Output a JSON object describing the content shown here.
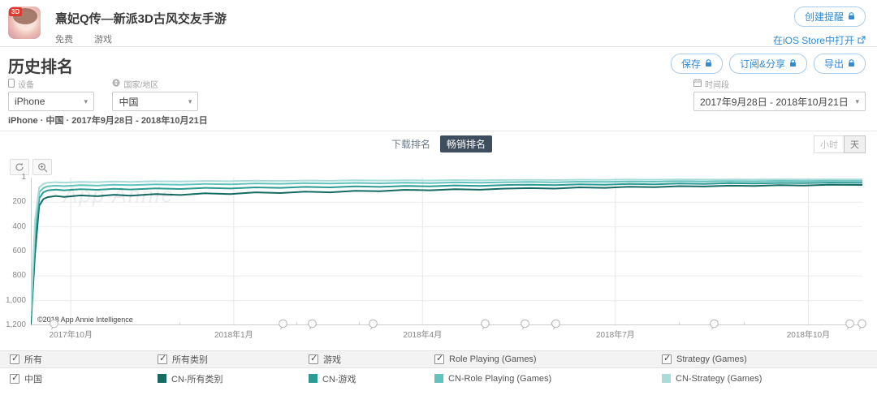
{
  "header": {
    "app_name": "熹妃Q传—新派3D古风交友手游",
    "price_tag": "免费",
    "category_tag": "游戏",
    "icon_badge": "3D",
    "create_alert_label": "创建提醒",
    "open_in_store_label": "在iOS Store中打开"
  },
  "page": {
    "title": "历史排名",
    "save_label": "保存",
    "subscribe_share_label": "订阅&分享",
    "export_label": "导出"
  },
  "filters": {
    "device_label": "设备",
    "device_value": "iPhone",
    "country_label": "国家/地区",
    "country_value": "中国",
    "period_label": "时间段",
    "period_value": "2017年9月28日 - 2018年10月21日",
    "summary": "iPhone · 中国 · 2017年9月28日 - 2018年10月21日"
  },
  "tabs": {
    "download_label": "下载排名",
    "grossing_label": "畅销排名",
    "active": "畅销排名"
  },
  "granularity": {
    "hour_label": "小时",
    "day_label": "天",
    "active": "天"
  },
  "chart_data": {
    "type": "line",
    "title": "历史排名",
    "x_range_label": "2017年9月28日 - 2018年10月21日",
    "y_axis_inverted": true,
    "ylim": [
      1,
      1200
    ],
    "grid": true,
    "copyright": "©2018 App Annie Intelligence",
    "watermark": "App Annie",
    "y_ticks": [
      {
        "v": 1,
        "label": "1"
      },
      {
        "v": 200,
        "label": "200"
      },
      {
        "v": 400,
        "label": "400"
      },
      {
        "v": 600,
        "label": "600"
      },
      {
        "v": 800,
        "label": "800"
      },
      {
        "v": 1000,
        "label": "1,000"
      },
      {
        "v": 1200,
        "label": "1,200"
      }
    ],
    "x_ticks": [
      {
        "pos": 0.048,
        "label": "2017年10月"
      },
      {
        "pos": 0.244,
        "label": "2018年1月"
      },
      {
        "pos": 0.471,
        "label": "2018年4月"
      },
      {
        "pos": 0.703,
        "label": "2018年7月"
      },
      {
        "pos": 0.935,
        "label": "2018年10月"
      }
    ],
    "x_minor_tick_positions": [
      0.113,
      0.179,
      0.32,
      0.395,
      0.548,
      0.626,
      0.78,
      0.858
    ],
    "event_marker_positions": [
      0.027,
      0.303,
      0.338,
      0.411,
      0.546,
      0.594,
      0.631,
      0.821,
      0.984,
      0.999
    ],
    "series": [
      {
        "name": "CN-所有类别",
        "color": "#156a64",
        "points": [
          [
            0,
            1190
          ],
          [
            0.005,
            620
          ],
          [
            0.01,
            230
          ],
          [
            0.015,
            175
          ],
          [
            0.02,
            160
          ],
          [
            0.03,
            150
          ],
          [
            0.04,
            158
          ],
          [
            0.06,
            145
          ],
          [
            0.08,
            152
          ],
          [
            0.1,
            140
          ],
          [
            0.12,
            148
          ],
          [
            0.15,
            135
          ],
          [
            0.18,
            142
          ],
          [
            0.21,
            128
          ],
          [
            0.24,
            135
          ],
          [
            0.27,
            120
          ],
          [
            0.3,
            126
          ],
          [
            0.33,
            115
          ],
          [
            0.36,
            120
          ],
          [
            0.39,
            108
          ],
          [
            0.42,
            112
          ],
          [
            0.45,
            100
          ],
          [
            0.48,
            104
          ],
          [
            0.51,
            95
          ],
          [
            0.54,
            99
          ],
          [
            0.57,
            90
          ],
          [
            0.6,
            86
          ],
          [
            0.63,
            90
          ],
          [
            0.66,
            80
          ],
          [
            0.69,
            84
          ],
          [
            0.72,
            75
          ],
          [
            0.75,
            78
          ],
          [
            0.78,
            70
          ],
          [
            0.81,
            73
          ],
          [
            0.84,
            66
          ],
          [
            0.87,
            69
          ],
          [
            0.9,
            62
          ],
          [
            0.93,
            65
          ],
          [
            0.96,
            58
          ],
          [
            1.0,
            60
          ]
        ]
      },
      {
        "name": "CN-游戏",
        "color": "#2b9a92",
        "points": [
          [
            0,
            1150
          ],
          [
            0.005,
            500
          ],
          [
            0.01,
            170
          ],
          [
            0.015,
            120
          ],
          [
            0.02,
            105
          ],
          [
            0.03,
            98
          ],
          [
            0.04,
            104
          ],
          [
            0.06,
            95
          ],
          [
            0.08,
            100
          ],
          [
            0.1,
            92
          ],
          [
            0.12,
            97
          ],
          [
            0.15,
            88
          ],
          [
            0.18,
            93
          ],
          [
            0.21,
            84
          ],
          [
            0.24,
            89
          ],
          [
            0.27,
            80
          ],
          [
            0.3,
            84
          ],
          [
            0.33,
            76
          ],
          [
            0.36,
            80
          ],
          [
            0.39,
            72
          ],
          [
            0.42,
            76
          ],
          [
            0.45,
            68
          ],
          [
            0.48,
            72
          ],
          [
            0.51,
            64
          ],
          [
            0.54,
            68
          ],
          [
            0.57,
            61
          ],
          [
            0.6,
            58
          ],
          [
            0.63,
            62
          ],
          [
            0.66,
            55
          ],
          [
            0.69,
            58
          ],
          [
            0.72,
            52
          ],
          [
            0.75,
            55
          ],
          [
            0.78,
            49
          ],
          [
            0.81,
            52
          ],
          [
            0.84,
            46
          ],
          [
            0.87,
            49
          ],
          [
            0.9,
            44
          ],
          [
            0.93,
            46
          ],
          [
            0.96,
            41
          ],
          [
            1.0,
            43
          ]
        ]
      },
      {
        "name": "CN-Role Playing (Games)",
        "color": "#62c3bd",
        "points": [
          [
            0,
            1120
          ],
          [
            0.005,
            420
          ],
          [
            0.01,
            120
          ],
          [
            0.015,
            85
          ],
          [
            0.02,
            72
          ],
          [
            0.03,
            66
          ],
          [
            0.04,
            70
          ],
          [
            0.06,
            62
          ],
          [
            0.08,
            66
          ],
          [
            0.1,
            58
          ],
          [
            0.12,
            62
          ],
          [
            0.15,
            55
          ],
          [
            0.18,
            58
          ],
          [
            0.21,
            52
          ],
          [
            0.24,
            55
          ],
          [
            0.27,
            48
          ],
          [
            0.3,
            51
          ],
          [
            0.33,
            46
          ],
          [
            0.36,
            49
          ],
          [
            0.39,
            44
          ],
          [
            0.42,
            47
          ],
          [
            0.45,
            42
          ],
          [
            0.48,
            45
          ],
          [
            0.51,
            40
          ],
          [
            0.54,
            42
          ],
          [
            0.57,
            38
          ],
          [
            0.6,
            36
          ],
          [
            0.63,
            39
          ],
          [
            0.66,
            34
          ],
          [
            0.69,
            36
          ],
          [
            0.72,
            32
          ],
          [
            0.75,
            34
          ],
          [
            0.78,
            30
          ],
          [
            0.81,
            32
          ],
          [
            0.84,
            29
          ],
          [
            0.87,
            31
          ],
          [
            0.9,
            27
          ],
          [
            0.93,
            29
          ],
          [
            0.96,
            26
          ],
          [
            1.0,
            27
          ]
        ]
      },
      {
        "name": "CN-Strategy (Games)",
        "color": "#a9dcd8",
        "points": [
          [
            0,
            1080
          ],
          [
            0.005,
            350
          ],
          [
            0.01,
            80
          ],
          [
            0.015,
            52
          ],
          [
            0.02,
            42
          ],
          [
            0.03,
            38
          ],
          [
            0.04,
            41
          ],
          [
            0.06,
            35
          ],
          [
            0.08,
            38
          ],
          [
            0.1,
            32
          ],
          [
            0.12,
            35
          ],
          [
            0.15,
            30
          ],
          [
            0.18,
            32
          ],
          [
            0.21,
            28
          ],
          [
            0.24,
            30
          ],
          [
            0.27,
            26
          ],
          [
            0.3,
            28
          ],
          [
            0.33,
            25
          ],
          [
            0.36,
            27
          ],
          [
            0.39,
            23
          ],
          [
            0.42,
            25
          ],
          [
            0.45,
            22
          ],
          [
            0.48,
            24
          ],
          [
            0.51,
            21
          ],
          [
            0.54,
            22
          ],
          [
            0.57,
            20
          ],
          [
            0.6,
            19
          ],
          [
            0.63,
            21
          ],
          [
            0.66,
            18
          ],
          [
            0.69,
            19
          ],
          [
            0.72,
            17
          ],
          [
            0.75,
            18
          ],
          [
            0.78,
            16
          ],
          [
            0.81,
            17
          ],
          [
            0.84,
            16
          ],
          [
            0.87,
            17
          ],
          [
            0.9,
            15
          ],
          [
            0.93,
            16
          ],
          [
            0.96,
            15
          ],
          [
            1.0,
            16
          ]
        ]
      }
    ]
  },
  "legend": {
    "filters": [
      "所有",
      "所有类别",
      "游戏",
      "Role Playing (Games)",
      "Strategy (Games)"
    ],
    "country": "中国",
    "all_checked": true
  }
}
